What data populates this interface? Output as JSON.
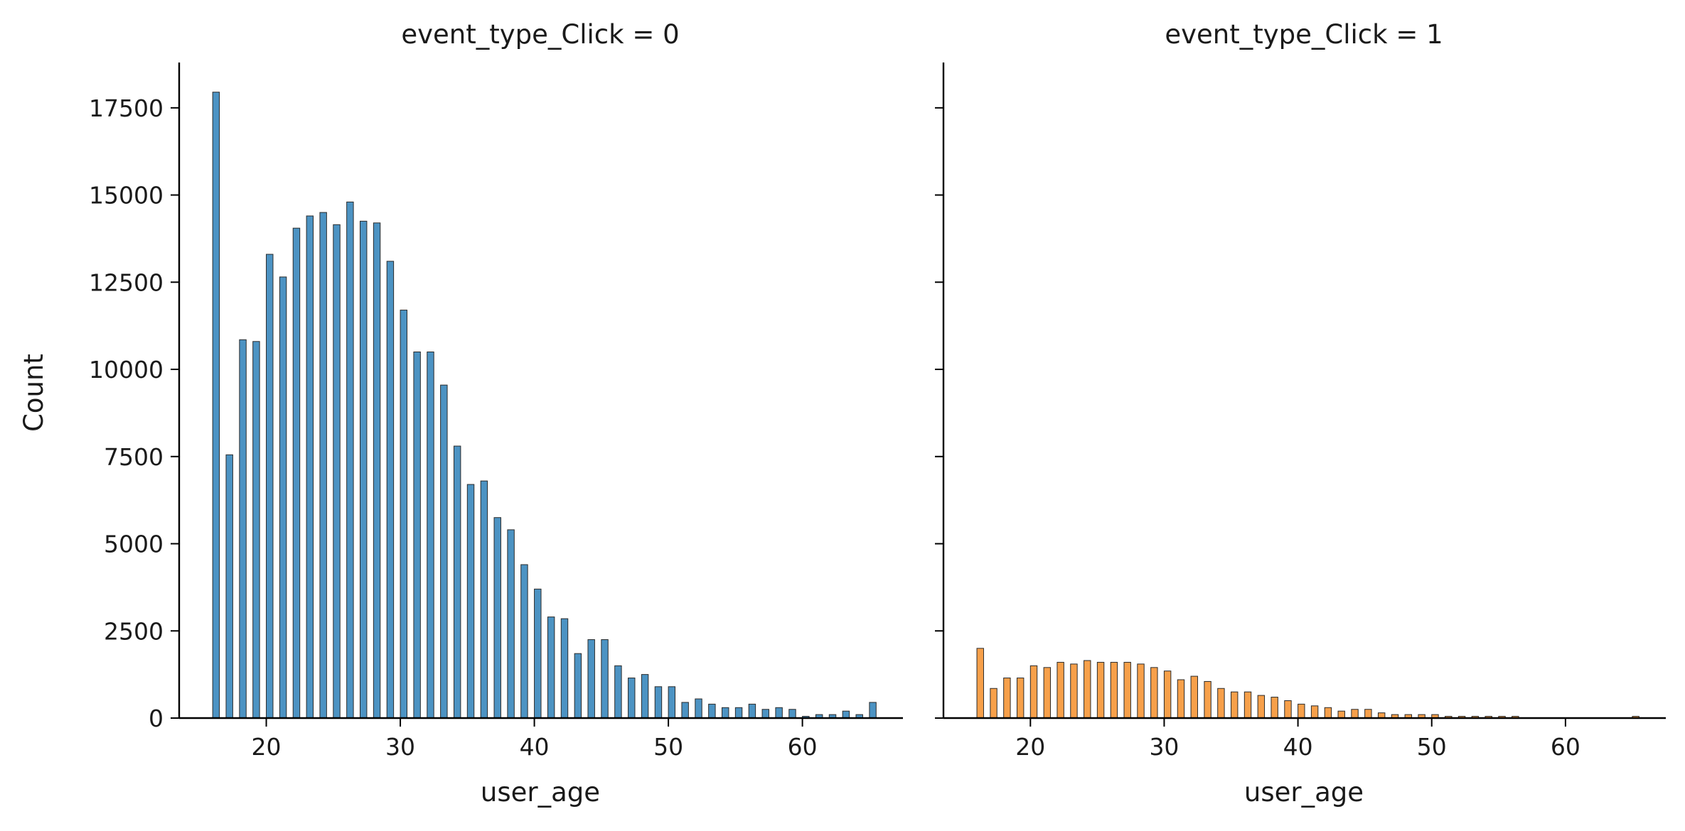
{
  "chart_data": {
    "type": "bar",
    "subtype": "faceted-histogram",
    "ylabel": "Count",
    "ylim": [
      0,
      18800
    ],
    "shared_y": true,
    "yticks": [
      0,
      2500,
      5000,
      7500,
      10000,
      12500,
      15000,
      17500
    ],
    "xlim": [
      13.5,
      67.5
    ],
    "xticks": [
      20,
      30,
      40,
      50,
      60
    ],
    "bin_width": 0.5,
    "grid": false,
    "panels": [
      {
        "title": "event_type_Click = 0",
        "xlabel": "user_age",
        "color": "#4c93c3",
        "x": [
          16,
          17,
          18,
          19,
          20,
          21,
          22,
          23,
          24,
          25,
          26,
          27,
          28,
          29,
          30,
          31,
          32,
          33,
          34,
          35,
          36,
          37,
          38,
          39,
          40,
          41,
          42,
          43,
          44,
          45,
          46,
          47,
          48,
          49,
          50,
          51,
          52,
          53,
          54,
          55,
          56,
          57,
          58,
          59,
          60,
          61,
          62,
          63,
          64,
          65
        ],
        "values": [
          17950,
          7550,
          10850,
          10800,
          13300,
          12650,
          14050,
          14400,
          14500,
          14150,
          14800,
          14250,
          14200,
          13100,
          11700,
          10500,
          10500,
          9550,
          7800,
          6700,
          6800,
          5750,
          5400,
          4400,
          3700,
          2900,
          2850,
          1850,
          2250,
          2250,
          1500,
          1150,
          1250,
          900,
          900,
          450,
          550,
          400,
          300,
          300,
          400,
          250,
          300,
          250,
          50,
          100,
          100,
          200,
          100,
          450
        ]
      },
      {
        "title": "event_type_Click = 1",
        "xlabel": "user_age",
        "color": "#f7a04a",
        "x": [
          16,
          17,
          18,
          19,
          20,
          21,
          22,
          23,
          24,
          25,
          26,
          27,
          28,
          29,
          30,
          31,
          32,
          33,
          34,
          35,
          36,
          37,
          38,
          39,
          40,
          41,
          42,
          43,
          44,
          45,
          46,
          47,
          48,
          49,
          50,
          51,
          52,
          53,
          54,
          55,
          56,
          57,
          58,
          59,
          60,
          61,
          62,
          63,
          64,
          65
        ],
        "values": [
          2000,
          850,
          1150,
          1150,
          1500,
          1450,
          1600,
          1550,
          1650,
          1600,
          1600,
          1600,
          1550,
          1450,
          1350,
          1100,
          1200,
          1050,
          850,
          750,
          750,
          650,
          600,
          500,
          400,
          350,
          300,
          200,
          250,
          250,
          150,
          100,
          100,
          100,
          100,
          50,
          50,
          50,
          50,
          50,
          50,
          0,
          0,
          0,
          0,
          0,
          0,
          0,
          0,
          50
        ]
      }
    ]
  }
}
